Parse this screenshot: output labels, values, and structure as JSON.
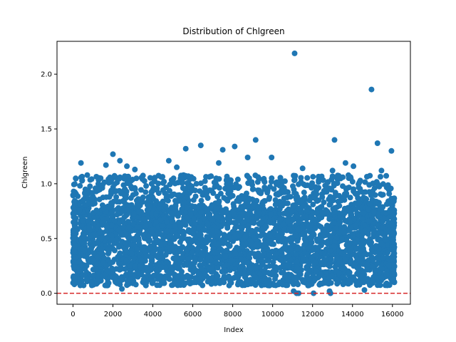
{
  "chart_data": {
    "type": "scatter",
    "title": "Distribution of Chlgreen",
    "xlabel": "Index",
    "ylabel": "Chlgreen",
    "xlim": [
      -800,
      16900
    ],
    "ylim": [
      -0.1,
      2.3
    ],
    "xticks": [
      0,
      2000,
      4000,
      6000,
      8000,
      10000,
      12000,
      14000,
      16000
    ],
    "yticks": [
      0.0,
      0.5,
      1.0,
      1.5,
      2.0
    ],
    "xtick_labels": [
      "0",
      "2000",
      "4000",
      "6000",
      "8000",
      "10000",
      "12000",
      "14000",
      "16000"
    ],
    "ytick_labels": [
      "0.0",
      "0.5",
      "1.0",
      "1.5",
      "2.0"
    ],
    "marker_color": "#1f77b4",
    "reference_line": {
      "y": 0.0,
      "color": "#d62728",
      "style": "dashed"
    },
    "grid": false,
    "legend": "none",
    "n_points_approx": 16200,
    "bulk_band": {
      "x_range": [
        0,
        16100
      ],
      "y_range": [
        0.07,
        0.72
      ]
    },
    "outliers": [
      {
        "x": 11100,
        "y": 2.19
      },
      {
        "x": 14950,
        "y": 1.86
      },
      {
        "x": 9150,
        "y": 1.4
      },
      {
        "x": 13100,
        "y": 1.4
      },
      {
        "x": 15250,
        "y": 1.37
      },
      {
        "x": 6400,
        "y": 1.35
      },
      {
        "x": 8100,
        "y": 1.34
      },
      {
        "x": 5650,
        "y": 1.32
      },
      {
        "x": 7500,
        "y": 1.31
      },
      {
        "x": 15950,
        "y": 1.3
      },
      {
        "x": 2000,
        "y": 1.27
      },
      {
        "x": 8750,
        "y": 1.24
      },
      {
        "x": 9950,
        "y": 1.24
      },
      {
        "x": 4800,
        "y": 1.21
      },
      {
        "x": 2350,
        "y": 1.21
      },
      {
        "x": 400,
        "y": 1.19
      },
      {
        "x": 7300,
        "y": 1.19
      },
      {
        "x": 13650,
        "y": 1.19
      },
      {
        "x": 1650,
        "y": 1.17
      },
      {
        "x": 2700,
        "y": 1.16
      },
      {
        "x": 14050,
        "y": 1.16
      },
      {
        "x": 5200,
        "y": 1.15
      },
      {
        "x": 11500,
        "y": 1.14
      },
      {
        "x": 3100,
        "y": 1.13
      },
      {
        "x": 13000,
        "y": 1.12
      },
      {
        "x": 15450,
        "y": 1.12
      },
      {
        "x": 11200,
        "y": 0.0
      },
      {
        "x": 11300,
        "y": 0.0
      },
      {
        "x": 12050,
        "y": 0.0
      },
      {
        "x": 12900,
        "y": 0.0
      },
      {
        "x": 11050,
        "y": 0.02
      },
      {
        "x": 12850,
        "y": 0.02
      },
      {
        "x": 14600,
        "y": 0.03
      },
      {
        "x": 2450,
        "y": 0.04
      }
    ]
  }
}
